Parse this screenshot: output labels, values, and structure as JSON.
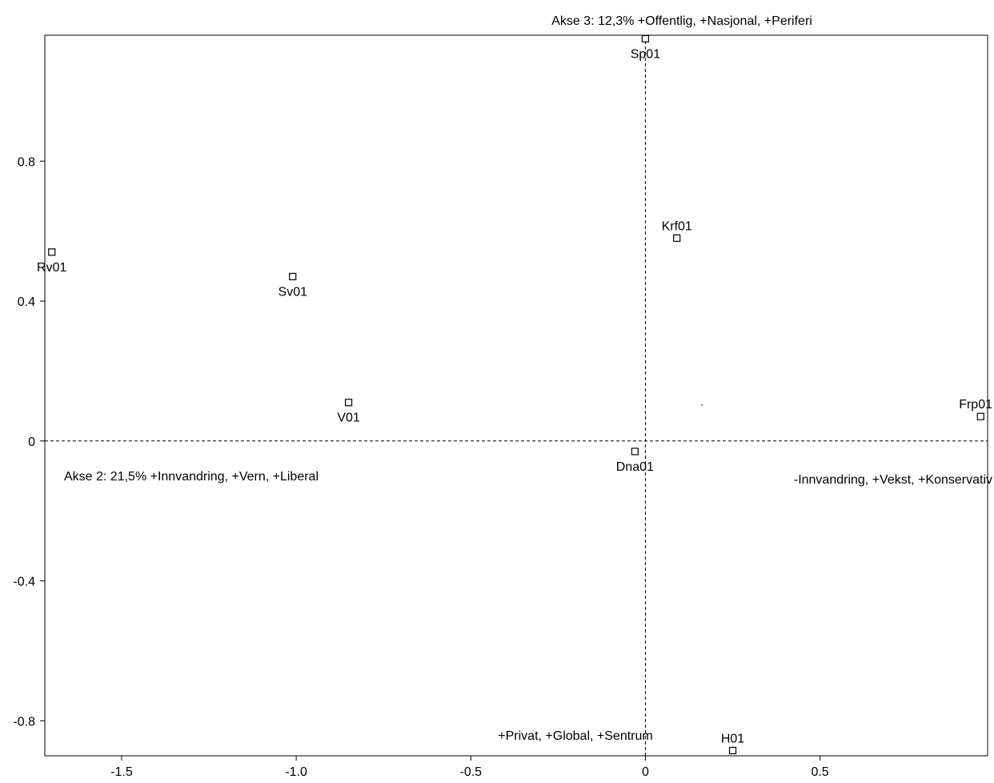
{
  "chart_data": {
    "type": "scatter",
    "title": "",
    "xlabel": "",
    "ylabel": "",
    "xlim": [
      -1.72,
      0.98
    ],
    "ylim": [
      -0.9,
      1.16
    ],
    "grid": false,
    "legend": "none",
    "x_ticks": [
      {
        "value": -1.5,
        "label": "-1.5"
      },
      {
        "value": -1.0,
        "label": "-1.0"
      },
      {
        "value": -0.5,
        "label": "-0.5"
      },
      {
        "value": 0,
        "label": "0"
      },
      {
        "value": 0.5,
        "label": "0.5"
      }
    ],
    "y_ticks": [
      {
        "value": 0.8,
        "label": "0.8"
      },
      {
        "value": 0.4,
        "label": "0.4"
      },
      {
        "value": 0,
        "label": "0"
      },
      {
        "value": -0.4,
        "label": "-0.4"
      },
      {
        "value": -0.8,
        "label": "-0.8"
      }
    ],
    "reference_lines": {
      "x": 0,
      "y": 0,
      "style": "dashed"
    },
    "points": [
      {
        "label": "Sp01",
        "x": 0.0,
        "y": 1.15,
        "label_pos": "below"
      },
      {
        "label": "Krf01",
        "x": 0.09,
        "y": 0.58,
        "label_pos": "above"
      },
      {
        "label": "Rv01",
        "x": -1.7,
        "y": 0.54,
        "label_pos": "below"
      },
      {
        "label": "Sv01",
        "x": -1.01,
        "y": 0.47,
        "label_pos": "below"
      },
      {
        "label": "V01",
        "x": -0.85,
        "y": 0.11,
        "label_pos": "below"
      },
      {
        "label": "Frp01",
        "x": 0.96,
        "y": 0.07,
        "label_pos": "above"
      },
      {
        "label": "Dna01",
        "x": -0.03,
        "y": -0.03,
        "label_pos": "below"
      },
      {
        "label": "H01",
        "x": 0.25,
        "y": -0.885,
        "label_pos": "above"
      }
    ],
    "annotations": [
      {
        "text": "Akse 3: 12,3% +Offentlig, +Nasjonal, +Periferi",
        "position": "top-center"
      },
      {
        "text": "Akse 2: 21,5% +Innvandring, +Vern, +Liberal",
        "position": "center-left"
      },
      {
        "text": "-Innvandring, +Vekst, +Konservativ",
        "position": "center-right"
      },
      {
        "text": "+Privat, +Global, +Sentrum",
        "position": "bottom-center"
      }
    ]
  }
}
